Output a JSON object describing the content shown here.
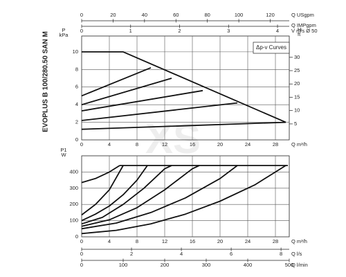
{
  "title": "EVOPLUS B 100/280.50 SAN M",
  "watermark": "XS",
  "chart_data": [
    {
      "type": "line",
      "y_label": "P",
      "y_unit": "kPa",
      "x_label": "Q m³/h",
      "xlim": [
        0,
        30
      ],
      "xticks": [
        0,
        4,
        8,
        12,
        16,
        20,
        24,
        28
      ],
      "ylim": [
        0,
        11.8
      ],
      "yticks": [
        0,
        2,
        4,
        6,
        8,
        10
      ],
      "grid": true,
      "y2_label": "H",
      "y2_unit": "ft",
      "y2lim": [
        -1,
        38
      ],
      "y2ticks": [
        5,
        10,
        15,
        20,
        25,
        30
      ],
      "legend_text": "Δp-v Curves",
      "extra_label": "Q IMPgpm",
      "extra_axes": [
        {
          "label": "Q USgpm",
          "lim": [
            0,
            132.1
          ],
          "ticks": [
            0,
            20,
            40,
            60,
            80,
            100,
            120
          ]
        },
        {
          "label": "V m/s Ø 50",
          "lim": [
            0,
            4.24
          ],
          "ticks": [
            0,
            1,
            2,
            3,
            4
          ]
        }
      ],
      "series": [
        {
          "color": "#111111",
          "x": [
            0,
            6,
            29.5
          ],
          "values": [
            10,
            10,
            2
          ]
        },
        {
          "color": "#111111",
          "x": [
            0,
            10
          ],
          "values": [
            5,
            8.2
          ]
        },
        {
          "color": "#111111",
          "x": [
            0,
            13
          ],
          "values": [
            4,
            7
          ]
        },
        {
          "color": "#111111",
          "x": [
            0,
            17.5
          ],
          "values": [
            3.3,
            5.6
          ]
        },
        {
          "color": "#111111",
          "x": [
            0,
            22.5
          ],
          "values": [
            2.2,
            4.2
          ]
        },
        {
          "color": "#111111",
          "x": [
            0,
            29.5
          ],
          "values": [
            1.2,
            2
          ]
        }
      ]
    },
    {
      "type": "line",
      "y_label": "P1",
      "y_unit": "W",
      "x_label": "Q m³/h",
      "xlim": [
        0,
        30
      ],
      "xticks": [
        0,
        4,
        8,
        12,
        16,
        20,
        24,
        28
      ],
      "ylim": [
        0,
        500
      ],
      "yticks": [
        0,
        100,
        200,
        300,
        400
      ],
      "grid": true,
      "extra_axes": [
        {
          "label": "Q l/s",
          "lim": [
            0,
            8.33
          ],
          "ticks": [
            0,
            2,
            4,
            6,
            8
          ]
        },
        {
          "label": "Q l/min",
          "lim": [
            0,
            500
          ],
          "ticks": [
            0,
            100,
            200,
            300,
            400,
            500
          ]
        }
      ],
      "series": [
        {
          "color": "#111111",
          "x": [
            5.5,
            29.8
          ],
          "values": [
            440,
            440
          ]
        },
        {
          "color": "#111111",
          "x": [
            0,
            2,
            4,
            5.5
          ],
          "values": [
            335,
            360,
            400,
            440
          ]
        },
        {
          "color": "#111111",
          "x": [
            0,
            2,
            4,
            6
          ],
          "values": [
            135,
            200,
            290,
            440
          ]
        },
        {
          "color": "#111111",
          "x": [
            0,
            2,
            4,
            6,
            8,
            9.5
          ],
          "values": [
            100,
            140,
            190,
            260,
            350,
            440
          ]
        },
        {
          "color": "#111111",
          "x": [
            0,
            3,
            6,
            9,
            12,
            13
          ],
          "values": [
            80,
            120,
            200,
            300,
            420,
            440
          ]
        },
        {
          "color": "#111111",
          "x": [
            0,
            4,
            8,
            12,
            16,
            17
          ],
          "values": [
            65,
            105,
            180,
            290,
            420,
            440
          ]
        },
        {
          "color": "#111111",
          "x": [
            0,
            5,
            10,
            15,
            20,
            22.5
          ],
          "values": [
            50,
            85,
            150,
            240,
            360,
            440
          ]
        },
        {
          "color": "#111111",
          "x": [
            0,
            5,
            10,
            15,
            20,
            25,
            29.5
          ],
          "values": [
            20,
            40,
            80,
            140,
            220,
            320,
            440
          ]
        }
      ]
    }
  ]
}
